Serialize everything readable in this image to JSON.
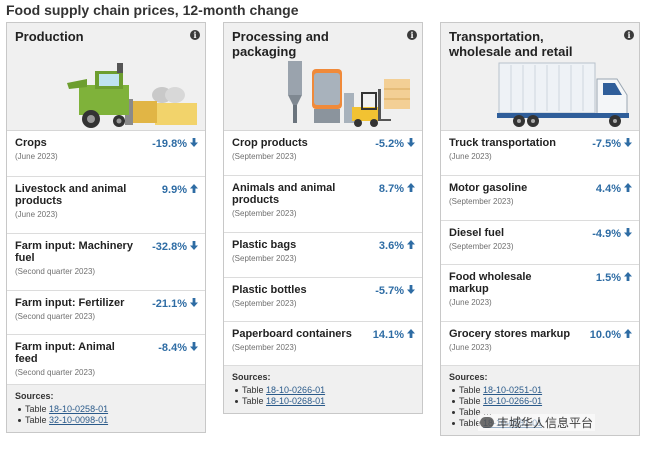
{
  "page_title": "Food supply chain prices, 12-month change",
  "info_glyph": "i",
  "sources_label": "Sources:",
  "source_prefix": "Table",
  "colors": {
    "value": "#2e6ca4",
    "panel_header": "#f0f0f0",
    "border": "#c8c8c8"
  },
  "icons": {
    "down": "arrow-down-icon",
    "up": "arrow-up-icon"
  },
  "panels": [
    {
      "title": "Production",
      "rows": [
        {
          "label": "Crops",
          "date": "(June 2023)",
          "value": "-19.8%",
          "dir": "down"
        },
        {
          "label": "Livestock and animal products",
          "date": "(June 2023)",
          "value": "9.9%",
          "dir": "up"
        },
        {
          "label": "Farm input: Machinery fuel",
          "date": "(Second quarter 2023)",
          "value": "-32.8%",
          "dir": "down"
        },
        {
          "label": "Farm input: Fertilizer",
          "date": "(Second quarter 2023)",
          "value": "-21.1%",
          "dir": "down"
        },
        {
          "label": "Farm input: Animal feed",
          "date": "(Second quarter 2023)",
          "value": "-8.4%",
          "dir": "down"
        }
      ],
      "sources": [
        "18-10-0258-01",
        "32-10-0098-01"
      ]
    },
    {
      "title": "Processing and packaging",
      "rows": [
        {
          "label": "Crop products",
          "date": "(September 2023)",
          "value": "-5.2%",
          "dir": "down"
        },
        {
          "label": "Animals and animal products",
          "date": "(September 2023)",
          "value": "8.7%",
          "dir": "up"
        },
        {
          "label": "Plastic bags",
          "date": "(September 2023)",
          "value": "3.6%",
          "dir": "up"
        },
        {
          "label": "Plastic bottles",
          "date": "(September 2023)",
          "value": "-5.7%",
          "dir": "down"
        },
        {
          "label": "Paperboard containers",
          "date": "(September 2023)",
          "value": "14.1%",
          "dir": "up"
        }
      ],
      "sources": [
        "18-10-0266-01",
        "18-10-0268-01"
      ]
    },
    {
      "title": "Transportation, wholesale and retail",
      "rows": [
        {
          "label": "Truck transportation",
          "date": "(June 2023)",
          "value": "-7.5%",
          "dir": "down"
        },
        {
          "label": "Motor gasoline",
          "date": "(September 2023)",
          "value": "4.4%",
          "dir": "up"
        },
        {
          "label": "Diesel fuel",
          "date": "(September 2023)",
          "value": "-4.9%",
          "dir": "down"
        },
        {
          "label": "Food wholesale markup",
          "date": "(June 2023)",
          "value": "1.5%",
          "dir": "up"
        },
        {
          "label": "Grocery stores markup",
          "date": "(June 2023)",
          "value": "10.0%",
          "dir": "up"
        }
      ],
      "sources": [
        "18-10-0251-01",
        "18-10-0266-01",
        "…",
        "18-10-0281-01"
      ]
    }
  ],
  "watermark": "丰城华人信息平台"
}
